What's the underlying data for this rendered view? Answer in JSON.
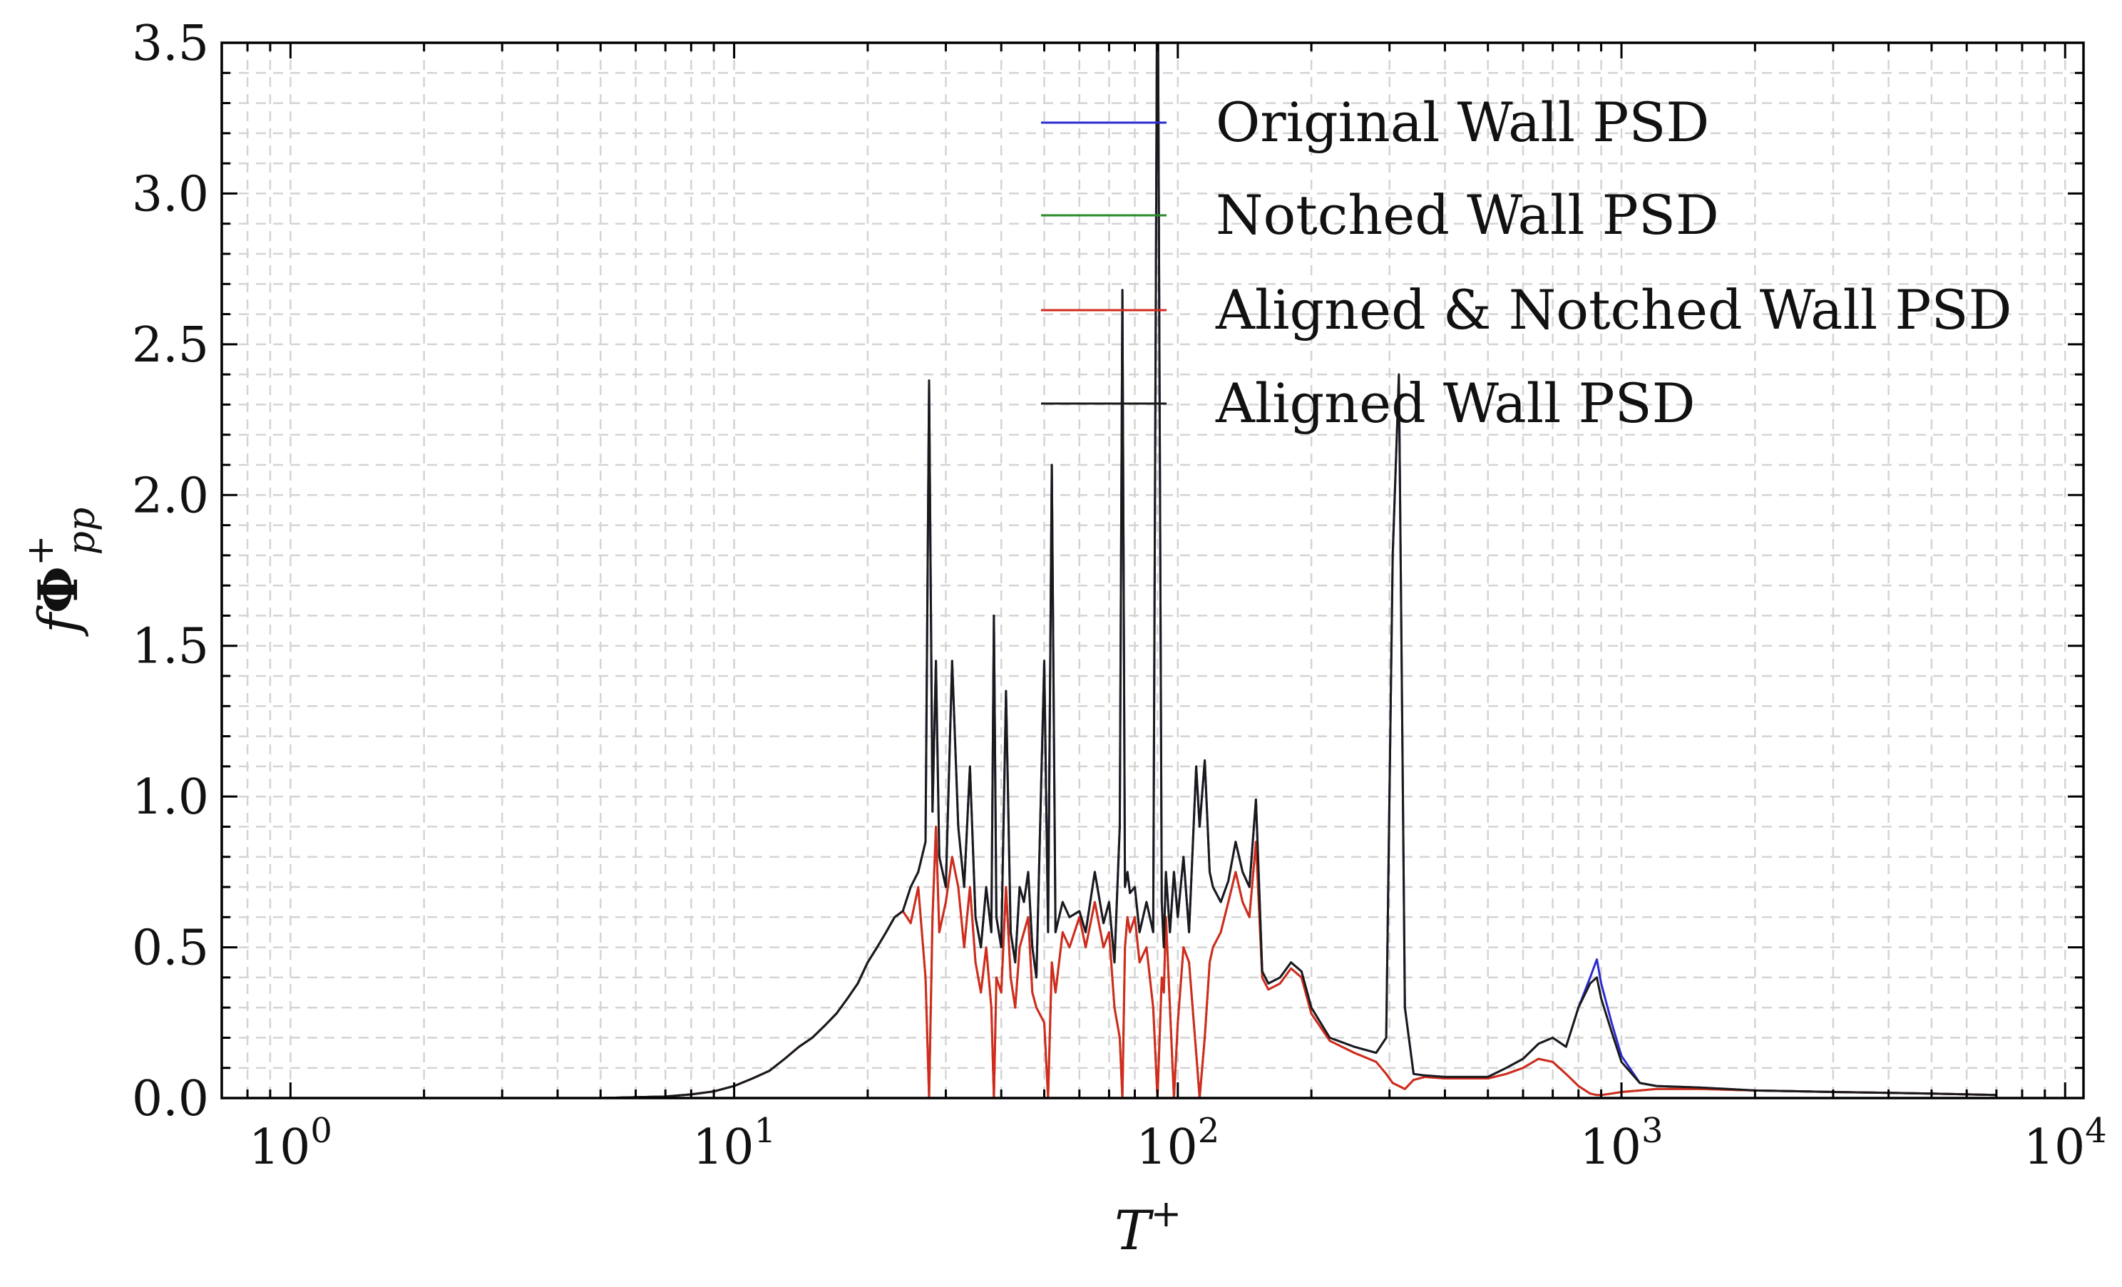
{
  "chart_data": {
    "type": "line",
    "xscale": "log",
    "xlim": [
      0.7,
      11000
    ],
    "ylim": [
      0,
      3.5
    ],
    "xlabel_base": "T",
    "xlabel_sup": "+",
    "ylabel_f": "f",
    "ylabel_phi": "Φ",
    "ylabel_sup": "+",
    "ylabel_sub": "pp",
    "grid": true,
    "legend_position": "top-center",
    "x_ticks": [
      {
        "value": 1,
        "base": "10",
        "exp": "0"
      },
      {
        "value": 10,
        "base": "10",
        "exp": "1"
      },
      {
        "value": 100,
        "base": "10",
        "exp": "2"
      },
      {
        "value": 1000,
        "base": "10",
        "exp": "3"
      },
      {
        "value": 10000,
        "base": "10",
        "exp": "4"
      }
    ],
    "y_ticks": [
      {
        "value": 0.0,
        "label": "0.0"
      },
      {
        "value": 0.5,
        "label": "0.5"
      },
      {
        "value": 1.0,
        "label": "1.0"
      },
      {
        "value": 1.5,
        "label": "1.5"
      },
      {
        "value": 2.0,
        "label": "2.0"
      },
      {
        "value": 2.5,
        "label": "2.5"
      },
      {
        "value": 3.0,
        "label": "3.0"
      },
      {
        "value": 3.5,
        "label": "3.5"
      }
    ],
    "series": [
      {
        "name": "Original Wall PSD",
        "color": "#2b2bd0",
        "x": [
          1.1,
          5,
          7,
          8,
          9,
          10,
          11,
          12,
          13,
          14,
          15,
          16,
          17,
          18,
          19,
          20,
          21,
          22,
          23,
          24,
          25,
          26,
          27,
          27.5,
          28,
          28.5,
          29,
          30,
          31,
          32,
          33,
          34,
          35,
          36,
          37,
          38,
          38.5,
          39,
          40,
          41,
          42,
          43,
          44,
          45,
          46,
          47,
          48,
          50,
          51,
          52,
          53,
          55,
          57,
          60,
          62,
          65,
          68,
          70,
          72,
          74,
          75,
          76,
          77,
          78,
          80,
          82,
          85,
          88,
          90,
          92,
          93,
          94,
          96,
          98,
          100,
          103,
          106,
          110,
          112,
          115,
          118,
          120,
          125,
          130,
          135,
          140,
          145,
          150,
          155,
          160,
          170,
          180,
          190,
          200,
          220,
          250,
          280,
          295,
          305,
          315,
          325,
          340,
          360,
          400,
          450,
          500,
          550,
          600,
          650,
          700,
          750,
          800,
          850,
          880,
          900,
          950,
          1000,
          1100,
          1200,
          1500,
          2000,
          3000,
          5000,
          7000
        ],
        "y": [
          0.0,
          0.0,
          0.005,
          0.012,
          0.022,
          0.04,
          0.065,
          0.09,
          0.13,
          0.17,
          0.2,
          0.24,
          0.28,
          0.33,
          0.38,
          0.45,
          0.5,
          0.55,
          0.6,
          0.62,
          0.7,
          0.75,
          0.85,
          2.38,
          0.95,
          1.45,
          0.8,
          0.7,
          1.45,
          0.9,
          0.7,
          1.1,
          0.6,
          0.5,
          0.7,
          0.55,
          1.6,
          0.6,
          0.5,
          1.35,
          0.55,
          0.45,
          0.7,
          0.65,
          0.75,
          0.5,
          0.4,
          1.45,
          0.55,
          2.1,
          0.55,
          0.65,
          0.6,
          0.62,
          0.55,
          0.75,
          0.58,
          0.65,
          0.45,
          0.9,
          2.68,
          0.7,
          0.75,
          0.68,
          0.7,
          0.55,
          0.65,
          0.55,
          4.0,
          0.65,
          0.5,
          0.75,
          0.55,
          0.75,
          0.6,
          0.8,
          0.55,
          1.1,
          0.9,
          1.12,
          0.75,
          0.7,
          0.65,
          0.72,
          0.85,
          0.75,
          0.7,
          0.99,
          0.42,
          0.38,
          0.4,
          0.45,
          0.42,
          0.3,
          0.2,
          0.17,
          0.15,
          0.2,
          1.8,
          2.4,
          0.3,
          0.08,
          0.075,
          0.07,
          0.07,
          0.07,
          0.1,
          0.13,
          0.18,
          0.2,
          0.17,
          0.3,
          0.4,
          0.46,
          0.38,
          0.25,
          0.14,
          0.05,
          0.04,
          0.035,
          0.025,
          0.02,
          0.015,
          0.01
        ]
      },
      {
        "name": "Notched Wall PSD",
        "color": "#2a8a2a",
        "x": [
          1.1,
          5,
          7,
          8,
          9,
          10,
          11,
          12,
          13,
          14,
          15,
          16,
          17,
          18,
          19,
          20,
          21,
          22,
          23,
          24,
          25,
          26,
          27,
          27.5,
          28,
          28.5,
          29,
          30,
          31,
          32,
          33,
          34,
          35,
          36,
          37,
          38,
          38.5,
          39,
          40,
          41,
          42,
          43,
          44,
          45,
          46,
          47,
          48,
          50,
          51,
          52,
          53,
          55,
          57,
          60,
          62,
          65,
          68,
          70,
          72,
          74,
          75,
          76,
          77,
          78,
          80,
          82,
          85,
          88,
          90,
          92,
          93,
          94,
          96,
          98,
          100,
          103,
          106,
          110,
          112,
          115,
          118,
          120,
          125,
          130,
          135,
          140,
          145,
          150,
          155,
          160,
          170,
          180,
          190,
          200,
          220,
          250,
          280,
          295,
          305,
          315,
          325,
          340,
          360,
          400,
          450,
          500,
          550,
          600,
          650,
          700,
          750,
          800,
          850,
          880,
          900,
          950,
          1000,
          1100,
          1200,
          1500,
          2000,
          3000,
          5000,
          7000
        ],
        "y": [
          0.0,
          0.0,
          0.005,
          0.012,
          0.022,
          0.04,
          0.065,
          0.09,
          0.13,
          0.17,
          0.2,
          0.24,
          0.28,
          0.33,
          0.38,
          0.45,
          0.5,
          0.55,
          0.6,
          0.62,
          0.58,
          0.7,
          0.4,
          0.0,
          0.6,
          0.9,
          0.55,
          0.65,
          0.8,
          0.7,
          0.5,
          0.7,
          0.45,
          0.35,
          0.5,
          0.3,
          0.0,
          0.4,
          0.35,
          0.7,
          0.4,
          0.3,
          0.5,
          0.55,
          0.6,
          0.35,
          0.3,
          0.25,
          0.0,
          0.45,
          0.35,
          0.55,
          0.5,
          0.6,
          0.5,
          0.65,
          0.5,
          0.55,
          0.3,
          0.2,
          0.0,
          0.5,
          0.6,
          0.55,
          0.6,
          0.45,
          0.5,
          0.3,
          0.0,
          0.4,
          0.35,
          0.6,
          0.3,
          0.0,
          0.25,
          0.5,
          0.45,
          0.15,
          0.0,
          0.2,
          0.45,
          0.5,
          0.55,
          0.65,
          0.75,
          0.65,
          0.6,
          0.85,
          0.4,
          0.36,
          0.38,
          0.43,
          0.4,
          0.28,
          0.19,
          0.15,
          0.12,
          0.08,
          0.05,
          0.04,
          0.03,
          0.06,
          0.07,
          0.065,
          0.065,
          0.065,
          0.08,
          0.1,
          0.13,
          0.12,
          0.08,
          0.04,
          0.015,
          0.01,
          0.01,
          0.015,
          0.02,
          0.025,
          0.03,
          0.03,
          0.025,
          0.02,
          0.015,
          0.01
        ]
      },
      {
        "name": "Aligned & Notched Wall PSD",
        "color": "#d42a1e",
        "x": [
          1.1,
          5,
          7,
          8,
          9,
          10,
          11,
          12,
          13,
          14,
          15,
          16,
          17,
          18,
          19,
          20,
          21,
          22,
          23,
          24,
          25,
          26,
          27,
          27.5,
          28,
          28.5,
          29,
          30,
          31,
          32,
          33,
          34,
          35,
          36,
          37,
          38,
          38.5,
          39,
          40,
          41,
          42,
          43,
          44,
          45,
          46,
          47,
          48,
          50,
          51,
          52,
          53,
          55,
          57,
          60,
          62,
          65,
          68,
          70,
          72,
          74,
          75,
          76,
          77,
          78,
          80,
          82,
          85,
          88,
          90,
          92,
          93,
          94,
          96,
          98,
          100,
          103,
          106,
          110,
          112,
          115,
          118,
          120,
          125,
          130,
          135,
          140,
          145,
          150,
          155,
          160,
          170,
          180,
          190,
          200,
          220,
          250,
          280,
          295,
          305,
          315,
          325,
          340,
          360,
          400,
          450,
          500,
          550,
          600,
          650,
          700,
          750,
          800,
          850,
          880,
          900,
          950,
          1000,
          1100,
          1200,
          1500,
          2000,
          3000,
          5000,
          7000
        ],
        "y": [
          0.0,
          0.0,
          0.005,
          0.012,
          0.022,
          0.04,
          0.065,
          0.09,
          0.13,
          0.17,
          0.2,
          0.24,
          0.28,
          0.33,
          0.38,
          0.45,
          0.5,
          0.55,
          0.6,
          0.62,
          0.58,
          0.7,
          0.4,
          0.0,
          0.6,
          0.9,
          0.55,
          0.65,
          0.8,
          0.7,
          0.5,
          0.7,
          0.45,
          0.35,
          0.5,
          0.3,
          0.0,
          0.4,
          0.35,
          0.7,
          0.4,
          0.3,
          0.5,
          0.55,
          0.6,
          0.35,
          0.3,
          0.25,
          0.0,
          0.45,
          0.35,
          0.55,
          0.5,
          0.6,
          0.5,
          0.65,
          0.5,
          0.55,
          0.3,
          0.2,
          0.0,
          0.5,
          0.6,
          0.55,
          0.6,
          0.45,
          0.5,
          0.3,
          0.0,
          0.4,
          0.35,
          0.6,
          0.3,
          0.0,
          0.25,
          0.5,
          0.45,
          0.15,
          0.0,
          0.2,
          0.45,
          0.5,
          0.55,
          0.65,
          0.75,
          0.65,
          0.6,
          0.85,
          0.4,
          0.36,
          0.38,
          0.43,
          0.4,
          0.28,
          0.19,
          0.15,
          0.12,
          0.08,
          0.05,
          0.04,
          0.03,
          0.06,
          0.07,
          0.065,
          0.065,
          0.065,
          0.08,
          0.1,
          0.13,
          0.12,
          0.08,
          0.04,
          0.015,
          0.01,
          0.01,
          0.015,
          0.02,
          0.025,
          0.03,
          0.03,
          0.025,
          0.02,
          0.015,
          0.01
        ]
      },
      {
        "name": "Aligned Wall PSD",
        "color": "#1a1a1a",
        "x": [
          1.1,
          5,
          7,
          8,
          9,
          10,
          11,
          12,
          13,
          14,
          15,
          16,
          17,
          18,
          19,
          20,
          21,
          22,
          23,
          24,
          25,
          26,
          27,
          27.5,
          28,
          28.5,
          29,
          30,
          31,
          32,
          33,
          34,
          35,
          36,
          37,
          38,
          38.5,
          39,
          40,
          41,
          42,
          43,
          44,
          45,
          46,
          47,
          48,
          50,
          51,
          52,
          53,
          55,
          57,
          60,
          62,
          65,
          68,
          70,
          72,
          74,
          75,
          76,
          77,
          78,
          80,
          82,
          85,
          88,
          90,
          92,
          93,
          94,
          96,
          98,
          100,
          103,
          106,
          110,
          112,
          115,
          118,
          120,
          125,
          130,
          135,
          140,
          145,
          150,
          155,
          160,
          170,
          180,
          190,
          200,
          220,
          250,
          280,
          295,
          305,
          315,
          325,
          340,
          360,
          400,
          450,
          500,
          550,
          600,
          650,
          700,
          750,
          800,
          850,
          880,
          900,
          950,
          1000,
          1100,
          1200,
          1500,
          2000,
          3000,
          5000,
          7000
        ],
        "y": [
          0.0,
          0.0,
          0.005,
          0.012,
          0.022,
          0.04,
          0.065,
          0.09,
          0.13,
          0.17,
          0.2,
          0.24,
          0.28,
          0.33,
          0.38,
          0.45,
          0.5,
          0.55,
          0.6,
          0.62,
          0.7,
          0.75,
          0.85,
          2.38,
          0.95,
          1.45,
          0.8,
          0.7,
          1.45,
          0.9,
          0.7,
          1.1,
          0.6,
          0.5,
          0.7,
          0.55,
          1.6,
          0.6,
          0.5,
          1.35,
          0.55,
          0.45,
          0.7,
          0.65,
          0.75,
          0.5,
          0.4,
          1.45,
          0.55,
          2.1,
          0.55,
          0.65,
          0.6,
          0.62,
          0.55,
          0.75,
          0.58,
          0.65,
          0.45,
          0.9,
          2.68,
          0.7,
          0.75,
          0.68,
          0.7,
          0.55,
          0.65,
          0.55,
          4.0,
          0.65,
          0.5,
          0.75,
          0.55,
          0.75,
          0.6,
          0.8,
          0.55,
          1.1,
          0.9,
          1.12,
          0.75,
          0.7,
          0.65,
          0.72,
          0.85,
          0.75,
          0.7,
          0.99,
          0.42,
          0.38,
          0.4,
          0.45,
          0.42,
          0.3,
          0.2,
          0.17,
          0.15,
          0.2,
          1.8,
          2.4,
          0.3,
          0.08,
          0.075,
          0.07,
          0.07,
          0.07,
          0.1,
          0.13,
          0.18,
          0.2,
          0.17,
          0.3,
          0.38,
          0.4,
          0.33,
          0.22,
          0.12,
          0.05,
          0.04,
          0.035,
          0.025,
          0.02,
          0.015,
          0.01
        ]
      }
    ]
  }
}
